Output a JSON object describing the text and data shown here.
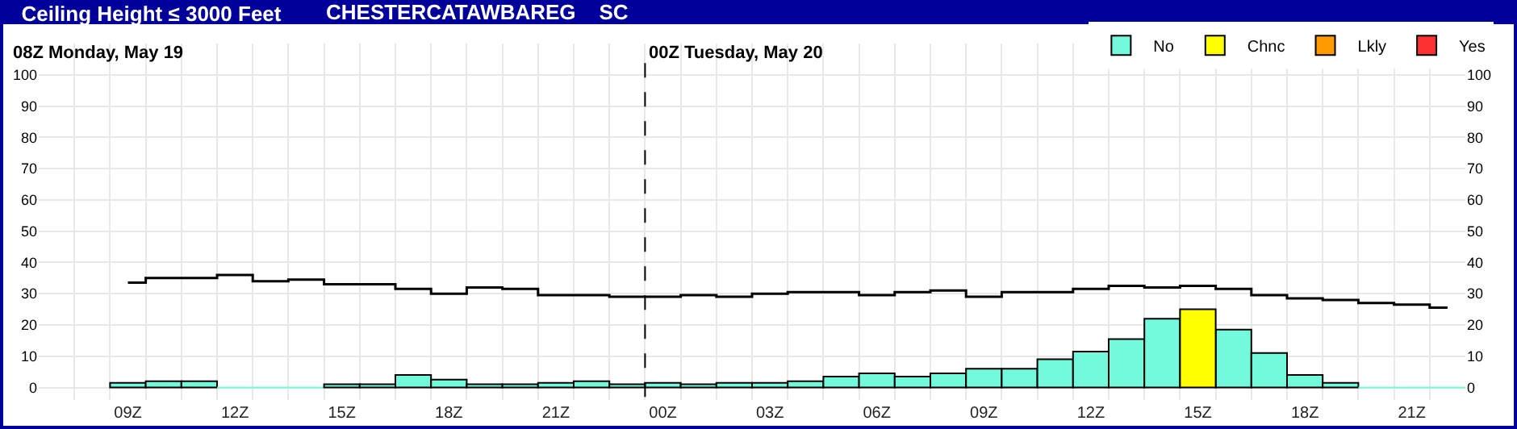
{
  "chart_data": {
    "type": "bar",
    "title": "Ceiling Height ≤ 3000 Feet",
    "subtitle": "CHESTERCATAWBAREG    SC",
    "annotations": [
      "08Z Monday, May 19"
    ],
    "categories": [
      null,
      null,
      "09Z",
      null,
      null,
      "12Z",
      null,
      null,
      "15Z",
      null,
      null,
      "18Z",
      null,
      null,
      "21Z",
      null,
      null,
      "00Z",
      null,
      null,
      "03Z",
      null,
      null,
      "06Z",
      null,
      null,
      "09Z",
      null,
      null,
      "12Z",
      null,
      null,
      "15Z",
      null,
      null,
      "18Z",
      null,
      null,
      "21Z",
      null
    ],
    "series": [
      {
        "name": "No",
        "color": "#73f9dc",
        "values": [
          null,
          null,
          1.5,
          2,
          2,
          0,
          0,
          0,
          1,
          1,
          4,
          2.5,
          1,
          1,
          1.5,
          2,
          1,
          1.5,
          1,
          1.5,
          1.5,
          2,
          3.5,
          4.5,
          3.5,
          4.5,
          6,
          6,
          9,
          11.5,
          15.5,
          22,
          null,
          18.5,
          11,
          4,
          1.5,
          0,
          0,
          0
        ]
      },
      {
        "name": "Chnc",
        "color": "#ffff00",
        "values": [
          null,
          null,
          null,
          null,
          null,
          null,
          null,
          null,
          null,
          null,
          null,
          null,
          null,
          null,
          null,
          null,
          null,
          null,
          null,
          null,
          null,
          null,
          null,
          null,
          null,
          null,
          null,
          null,
          null,
          null,
          null,
          null,
          25,
          null,
          null,
          null,
          null,
          null,
          null,
          null
        ]
      },
      {
        "name": "Lkly",
        "color": "#ff9a00",
        "values": [
          null,
          null,
          null,
          null,
          null,
          null,
          null,
          null,
          null,
          null,
          null,
          null,
          null,
          null,
          null,
          null,
          null,
          null,
          null,
          null,
          null,
          null,
          null,
          null,
          null,
          null,
          null,
          null,
          null,
          null,
          null,
          null,
          null,
          null,
          null,
          null,
          null,
          null,
          null,
          null
        ]
      },
      {
        "name": "Yes",
        "color": "#ff3030",
        "values": [
          null,
          null,
          null,
          null,
          null,
          null,
          null,
          null,
          null,
          null,
          null,
          null,
          null,
          null,
          null,
          null,
          null,
          null,
          null,
          null,
          null,
          null,
          null,
          null,
          null,
          null,
          null,
          null,
          null,
          null,
          null,
          null,
          null,
          null,
          null,
          null,
          null,
          null,
          null,
          null
        ]
      },
      {
        "type": "step",
        "color": "#000000",
        "values": [
          null,
          null,
          33.5,
          35,
          35,
          36,
          34,
          34.5,
          33,
          33,
          31.5,
          30,
          32,
          31.5,
          29.5,
          29.5,
          29,
          29,
          29.5,
          29,
          30,
          30.5,
          30.5,
          29.5,
          30.5,
          31,
          29,
          30.5,
          30.5,
          31.5,
          32.5,
          32,
          32.5,
          31.5,
          29.5,
          28.5,
          28,
          27,
          26.5,
          25.5
        ]
      }
    ],
    "ylim": [
      -4,
      110
    ],
    "yticks": [
      0,
      10,
      20,
      30,
      40,
      50,
      60,
      70,
      80,
      90,
      100
    ],
    "y2lim": [
      -4,
      110
    ],
    "y2ticks": [
      0,
      10,
      20,
      30,
      40,
      50,
      60,
      70,
      80,
      90,
      100
    ],
    "ref_lines": [
      {
        "axis": "x",
        "value": "00Z",
        "label": "00Z Tuesday, May 20",
        "color": "#000000",
        "line_style": "dashed"
      }
    ],
    "grid": true,
    "legend": "top right"
  }
}
